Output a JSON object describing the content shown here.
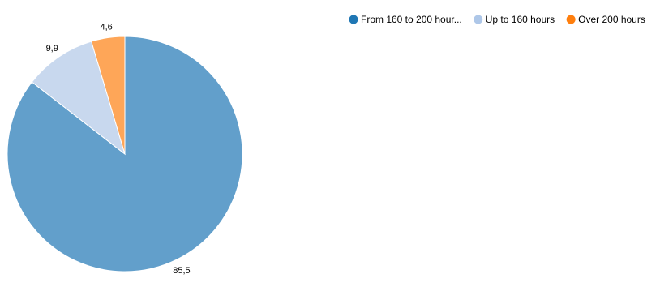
{
  "chart_data": {
    "type": "pie",
    "categories": [
      "From 160 to 200 hour...",
      "Up to 160 hours",
      "Over 200 hours"
    ],
    "values": [
      85.5,
      9.9,
      4.6
    ],
    "value_labels": [
      "85,5",
      "9,9",
      "4,6"
    ],
    "title": "",
    "legend_position": "top-right",
    "slice_colors": [
      "#629fcb",
      "#c8d8ee",
      "#fea658"
    ],
    "legend_colors": [
      "#1f77b4",
      "#aec7e8",
      "#ff7f0e"
    ]
  }
}
